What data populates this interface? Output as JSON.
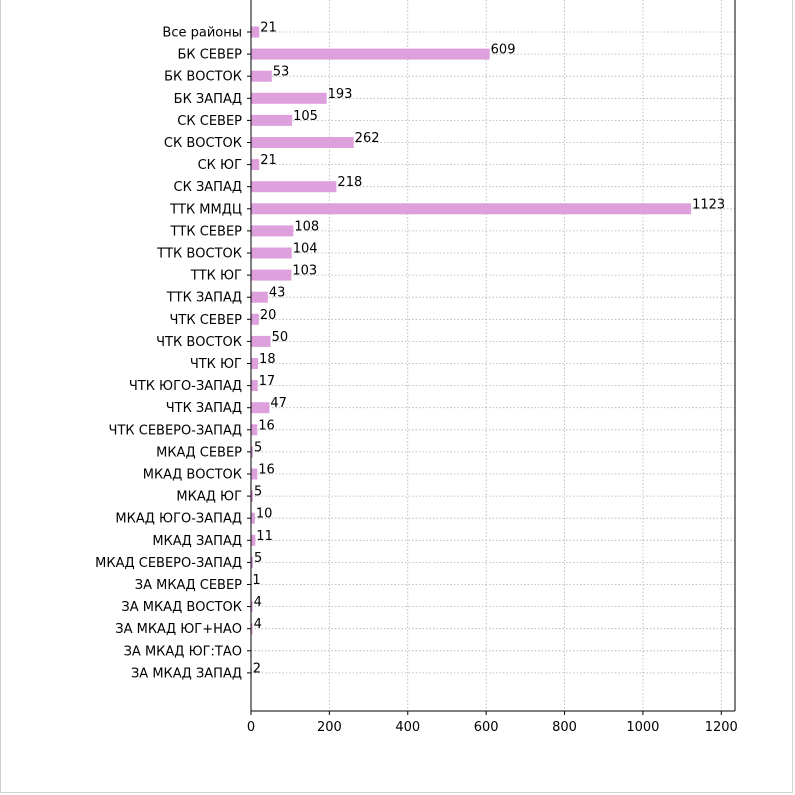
{
  "chart_data": {
    "type": "bar",
    "orientation": "horizontal",
    "categories": [
      "Все районы",
      "БК СЕВЕР",
      "БК ВОСТОК",
      "БК ЗАПАД",
      "СК СЕВЕР",
      "СК ВОСТОК",
      "СК ЮГ",
      "СК ЗАПАД",
      "ТТК ММДЦ",
      "ТТК СЕВЕР",
      "ТТК ВОСТОК",
      "ТТК ЮГ",
      "ТТК ЗАПАД",
      "ЧТК СЕВЕР",
      "ЧТК ВОСТОК",
      "ЧТК ЮГ",
      "ЧТК ЮГО-ЗАПАД",
      "ЧТК ЗАПАД",
      "ЧТК СЕВЕРО-ЗАПАД",
      "МКАД СЕВЕР",
      "МКАД ВОСТОК",
      "МКАД ЮГ",
      "МКАД ЮГО-ЗАПАД",
      "МКАД ЗАПАД",
      "МКАД СЕВЕРО-ЗАПАД",
      "ЗА МКАД СЕВЕР",
      "ЗА МКАД ВОСТОК",
      "ЗА МКАД ЮГ+НАО",
      "ЗА МКАД ЮГ:ТАО",
      "ЗА МКАД ЗАПАД"
    ],
    "values": [
      21,
      609,
      53,
      193,
      105,
      262,
      21,
      218,
      1123,
      108,
      104,
      103,
      43,
      20,
      50,
      18,
      17,
      47,
      16,
      5,
      16,
      5,
      10,
      11,
      5,
      1,
      4,
      4,
      null,
      2
    ],
    "value_labels": [
      "21",
      "609",
      "53",
      "193",
      "105",
      "262",
      "21",
      "218",
      "1123",
      "108",
      "104",
      "103",
      "43",
      "20",
      "50",
      "18",
      "17",
      "47",
      "16",
      "5",
      "16",
      "5",
      "10",
      "11",
      "5",
      "1",
      "4",
      "4",
      "",
      "2"
    ],
    "xlim": [
      0,
      1235
    ],
    "xticks": [
      0,
      200,
      400,
      600,
      800,
      1000,
      1200
    ],
    "xtick_labels": [
      "0",
      "200",
      "400",
      "600",
      "800",
      "1000",
      "1200"
    ],
    "grid": true,
    "bar_color": "#dda0dd",
    "title": "",
    "xlabel": "",
    "ylabel": ""
  }
}
